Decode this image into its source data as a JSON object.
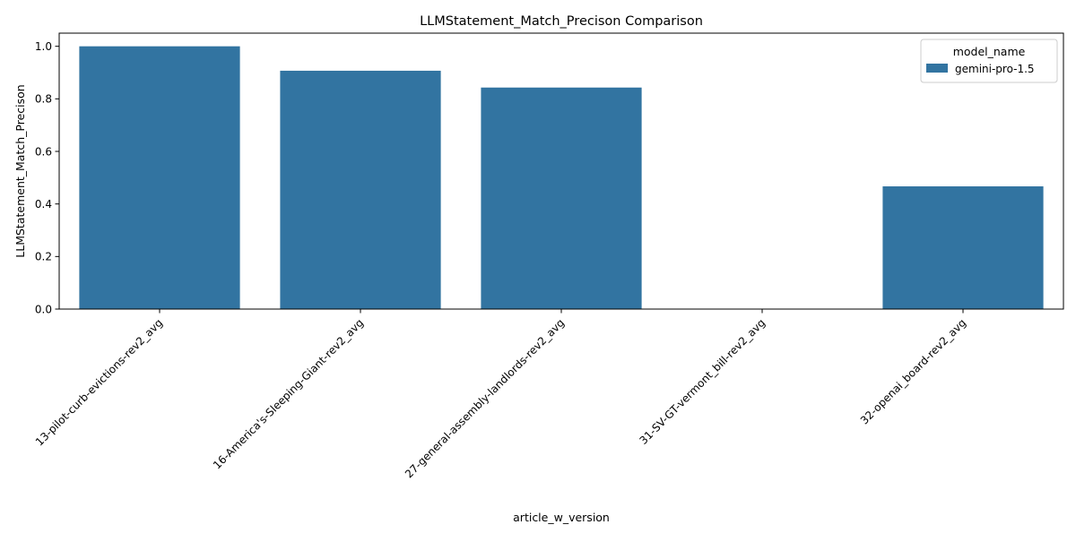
{
  "chart_data": {
    "type": "bar",
    "title": "LLMStatement_Match_Precison Comparison",
    "xlabel": "article_w_version",
    "ylabel": "LLMStatement_Match_Precison",
    "categories": [
      "13-pilot-curb-evictions-rev2_avg",
      "16-America's-Sleeping-Giant-rev2_avg",
      "27-general-assembly-landlords-rev2_avg",
      "31-SV-GT-vermont_bill-rev2_avg",
      "32-openai_board-rev2_avg"
    ],
    "series": [
      {
        "name": "gemini-pro-1.5",
        "values": [
          1.0,
          0.907,
          0.843,
          0.0,
          0.467
        ],
        "color": "#3274a1"
      }
    ],
    "ylim": [
      0,
      1.05
    ],
    "yticks": [
      0.0,
      0.2,
      0.4,
      0.6,
      0.8,
      1.0
    ],
    "ytick_labels": [
      "0.0",
      "0.2",
      "0.4",
      "0.6",
      "0.8",
      "1.0"
    ],
    "legend": {
      "title": "model_name",
      "placement": "top-right"
    },
    "grid": false
  }
}
